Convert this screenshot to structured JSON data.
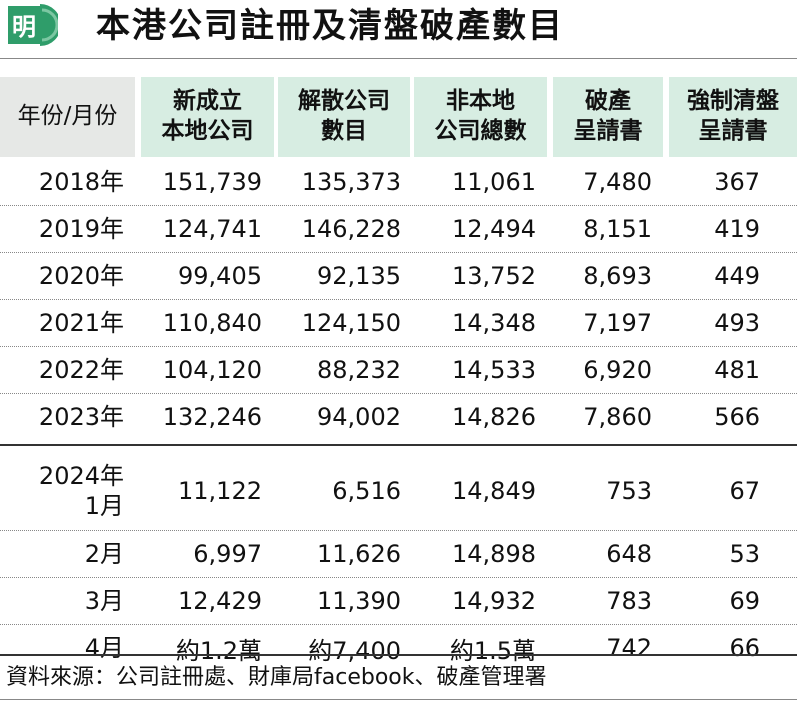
{
  "header": {
    "logo_char": "明",
    "title": "本港公司註冊及清盤破產數目"
  },
  "table": {
    "columns": [
      "年份/月份",
      "新成立\n本地公司",
      "解散公司\n數目",
      "非本地\n公司總數",
      "破產\n呈請書",
      "強制清盤\n呈請書"
    ],
    "yearly_rows": [
      {
        "period": "2018年",
        "new_local": "151,739",
        "dissolved": "135,373",
        "non_local": "11,061",
        "bankruptcy": "7,480",
        "winding_up": "367"
      },
      {
        "period": "2019年",
        "new_local": "124,741",
        "dissolved": "146,228",
        "non_local": "12,494",
        "bankruptcy": "8,151",
        "winding_up": "419"
      },
      {
        "period": "2020年",
        "new_local": "99,405",
        "dissolved": "92,135",
        "non_local": "13,752",
        "bankruptcy": "8,693",
        "winding_up": "449"
      },
      {
        "period": "2021年",
        "new_local": "110,840",
        "dissolved": "124,150",
        "non_local": "14,348",
        "bankruptcy": "7,197",
        "winding_up": "493"
      },
      {
        "period": "2022年",
        "new_local": "104,120",
        "dissolved": "88,232",
        "non_local": "14,533",
        "bankruptcy": "6,920",
        "winding_up": "481"
      },
      {
        "period": "2023年",
        "new_local": "132,246",
        "dissolved": "94,002",
        "non_local": "14,826",
        "bankruptcy": "7,860",
        "winding_up": "566"
      }
    ],
    "monthly_rows": [
      {
        "period": "2024年\n1月",
        "new_local": "11,122",
        "dissolved": "6,516",
        "non_local": "14,849",
        "bankruptcy": "753",
        "winding_up": "67"
      },
      {
        "period": "2月",
        "new_local": "6,997",
        "dissolved": "11,626",
        "non_local": "14,898",
        "bankruptcy": "648",
        "winding_up": "53"
      },
      {
        "period": "3月",
        "new_local": "12,429",
        "dissolved": "11,390",
        "non_local": "14,932",
        "bankruptcy": "783",
        "winding_up": "69"
      },
      {
        "period": "4月",
        "new_local": "約1.2萬",
        "dissolved": "約7,400",
        "non_local": "約1.5萬",
        "bankruptcy": "742",
        "winding_up": "66"
      }
    ]
  },
  "footer": {
    "source": "資料來源：公司註冊處、財庫局facebook、破產管理署"
  },
  "colors": {
    "header_green": "#d7ede2",
    "header_grey": "#e6e8e6",
    "logo_green": "#2f9d6a"
  }
}
